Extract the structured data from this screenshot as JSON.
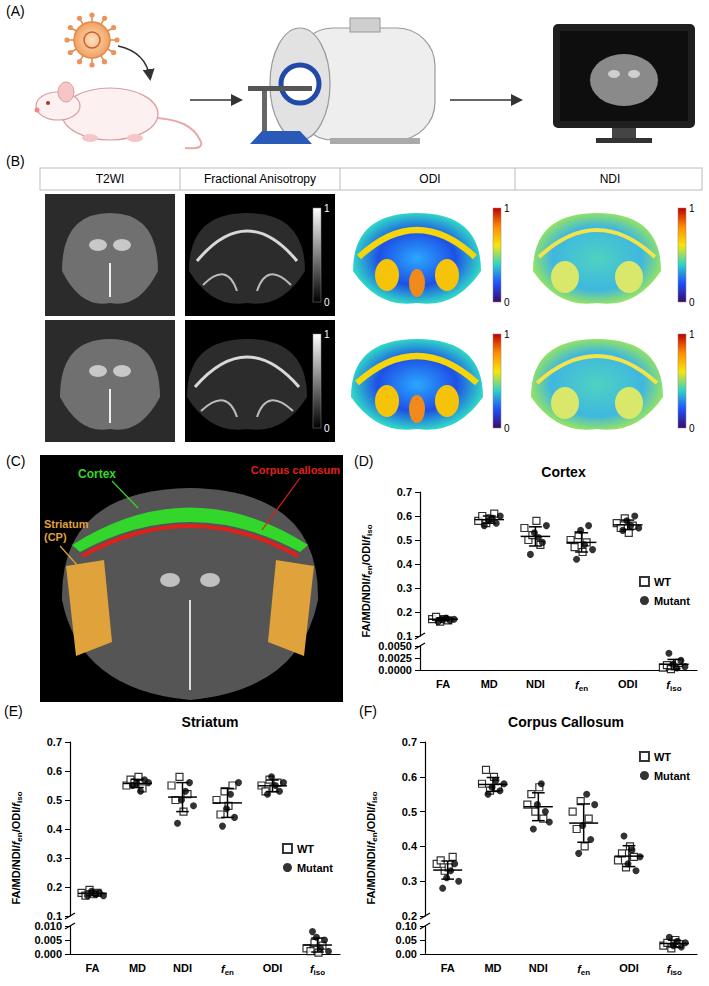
{
  "panels": {
    "A": {
      "label": "(A)"
    },
    "B": {
      "label": "(B)",
      "columns": [
        "T2WI",
        "Fractional Anisotropy",
        "ODI",
        "NDI"
      ],
      "colorbar": {
        "range": [
          0,
          1
        ],
        "ticks": [
          0,
          1
        ]
      }
    },
    "C": {
      "label": "(C)",
      "regions": [
        {
          "name": "Cortex",
          "color": "#33d62b"
        },
        {
          "name": "Corpus callosum",
          "color": "#e0201b"
        },
        {
          "name": "Striatum (CP)",
          "color": "#e0a23a"
        }
      ]
    }
  },
  "chart_data": [
    {
      "type": "scatter",
      "panel": "(D)",
      "title": "Cortex",
      "ylabel": "FA/MD/NDI/fen/ODI/fiso",
      "categories": [
        "FA",
        "MD",
        "NDI",
        "fen",
        "ODI",
        "fiso"
      ],
      "ylim": [
        0.1,
        0.7
      ],
      "yticks": [
        0.1,
        0.2,
        0.3,
        0.4,
        0.5,
        0.6,
        0.7
      ],
      "y2lim": [
        0,
        0.005
      ],
      "y2ticks": [
        {
          "value": 0,
          "label": "0.0000"
        },
        {
          "value": 0.0025,
          "label": "0.0025"
        },
        {
          "value": 0.005,
          "label": "0.0050"
        }
      ],
      "legend": "right",
      "series": [
        {
          "name": "WT",
          "color": "#000000",
          "marker": "open-square",
          "values": [
            [
              0.17,
              0.18,
              0.16,
              0.17,
              0.165
            ],
            [
              0.58,
              0.6,
              0.57,
              0.59,
              0.61
            ],
            [
              0.55,
              0.5,
              0.52,
              0.58,
              0.48
            ],
            [
              0.5,
              0.47,
              0.52,
              0.45,
              0.49
            ],
            [
              0.57,
              0.55,
              0.59,
              0.53,
              0.56
            ],
            [
              0.0005,
              0.001,
              0.0002,
              0.0008,
              0.0015
            ]
          ]
        },
        {
          "name": "Mutant",
          "color": "#000000",
          "marker": "circle",
          "values": [
            [
              0.16,
              0.17,
              0.175,
              0.165,
              0.17
            ],
            [
              0.56,
              0.58,
              0.59,
              0.57,
              0.6
            ],
            [
              0.44,
              0.53,
              0.51,
              0.49,
              0.56
            ],
            [
              0.42,
              0.54,
              0.48,
              0.56,
              0.46
            ],
            [
              0.54,
              0.58,
              0.56,
              0.6,
              0.55
            ],
            [
              0.0035,
              0.0012,
              0.0004,
              0.002,
              0.0007
            ]
          ]
        }
      ],
      "mean": [
        0.17,
        0.585,
        0.515,
        0.49,
        0.563,
        0.0012
      ],
      "sd": [
        0.006,
        0.015,
        0.04,
        0.04,
        0.02,
        0.001
      ]
    },
    {
      "type": "scatter",
      "panel": "(E)",
      "title": "Striatum",
      "ylabel": "FA/MD/NDI/fen/ODI/fiso",
      "categories": [
        "FA",
        "MD",
        "NDI",
        "fen",
        "ODI",
        "fiso"
      ],
      "ylim": [
        0.1,
        0.7
      ],
      "yticks": [
        0.1,
        0.2,
        0.3,
        0.4,
        0.5,
        0.6,
        0.7
      ],
      "y2lim": [
        0,
        0.01
      ],
      "y2ticks": [
        {
          "value": 0,
          "label": "0.000"
        },
        {
          "value": 0.005,
          "label": "0.005"
        },
        {
          "value": 0.01,
          "label": "0.010"
        }
      ],
      "legend": "right",
      "series": [
        {
          "name": "WT",
          "color": "#000000",
          "marker": "open-square",
          "values": [
            [
              0.18,
              0.17,
              0.19,
              0.175,
              0.18
            ],
            [
              0.55,
              0.57,
              0.56,
              0.58,
              0.54
            ],
            [
              0.55,
              0.5,
              0.58,
              0.46,
              0.52
            ],
            [
              0.5,
              0.45,
              0.53,
              0.48,
              0.55
            ],
            [
              0.55,
              0.53,
              0.57,
              0.54,
              0.56
            ],
            [
              0.002,
              0.001,
              0.004,
              0.0005,
              0.003
            ]
          ]
        },
        {
          "name": "Mutant",
          "color": "#000000",
          "marker": "circle",
          "values": [
            [
              0.17,
              0.185,
              0.175,
              0.18,
              0.17
            ],
            [
              0.55,
              0.56,
              0.53,
              0.57,
              0.56
            ],
            [
              0.42,
              0.5,
              0.53,
              0.56,
              0.48
            ],
            [
              0.41,
              0.47,
              0.52,
              0.44,
              0.56
            ],
            [
              0.52,
              0.58,
              0.55,
              0.53,
              0.56
            ],
            [
              0.008,
              0.006,
              0.002,
              0.005,
              0.001
            ]
          ]
        }
      ],
      "mean": [
        0.178,
        0.557,
        0.51,
        0.49,
        0.549,
        0.0032
      ],
      "sd": [
        0.008,
        0.014,
        0.05,
        0.05,
        0.02,
        0.0025
      ]
    },
    {
      "type": "scatter",
      "panel": "(F)",
      "title": "Corpus Callosum",
      "ylabel": "FA/MD/NDI/fen/ODI/fiso",
      "categories": [
        "FA",
        "MD",
        "NDI",
        "fen",
        "ODI",
        "fiso"
      ],
      "ylim": [
        0.2,
        0.7
      ],
      "yticks": [
        0.2,
        0.3,
        0.4,
        0.5,
        0.6,
        0.7
      ],
      "y2lim": [
        0,
        0.1
      ],
      "y2ticks": [
        {
          "value": 0,
          "label": "0.00"
        },
        {
          "value": 0.05,
          "label": "0.05"
        },
        {
          "value": 0.1,
          "label": "0.10"
        }
      ],
      "legend": "upper right",
      "series": [
        {
          "name": "WT",
          "color": "#000000",
          "marker": "open-square",
          "values": [
            [
              0.35,
              0.36,
              0.33,
              0.34,
              0.37
            ],
            [
              0.58,
              0.62,
              0.56,
              0.6,
              0.57
            ],
            [
              0.52,
              0.55,
              0.5,
              0.57,
              0.48
            ],
            [
              0.5,
              0.45,
              0.53,
              0.4,
              0.48
            ],
            [
              0.36,
              0.38,
              0.34,
              0.4,
              0.37
            ],
            [
              0.03,
              0.04,
              0.02,
              0.05,
              0.035
            ]
          ]
        },
        {
          "name": "Mutant",
          "color": "#000000",
          "marker": "circle",
          "values": [
            [
              0.28,
              0.31,
              0.33,
              0.35,
              0.3
            ],
            [
              0.55,
              0.57,
              0.59,
              0.56,
              0.58
            ],
            [
              0.45,
              0.52,
              0.58,
              0.5,
              0.47
            ],
            [
              0.38,
              0.46,
              0.55,
              0.42,
              0.52
            ],
            [
              0.43,
              0.35,
              0.39,
              0.33,
              0.37
            ],
            [
              0.06,
              0.03,
              0.045,
              0.025,
              0.04
            ]
          ]
        }
      ],
      "mean": [
        0.332,
        0.578,
        0.514,
        0.467,
        0.372,
        0.0375
      ],
      "sd": [
        0.026,
        0.02,
        0.04,
        0.055,
        0.03,
        0.012
      ]
    }
  ]
}
